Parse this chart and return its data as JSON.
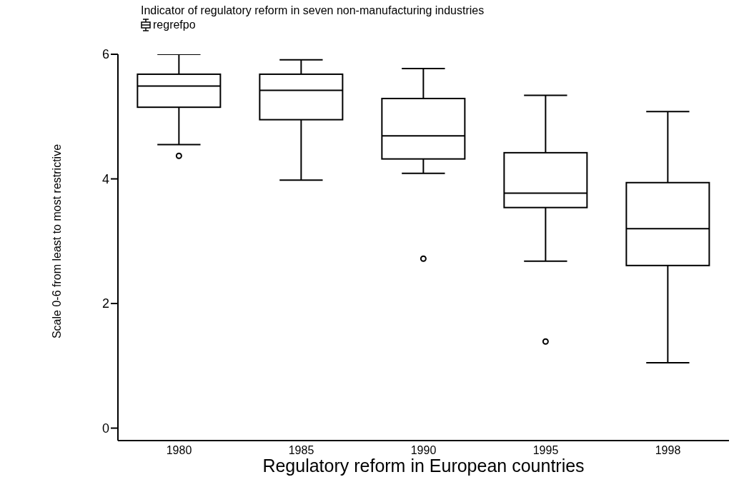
{
  "chart_data": {
    "type": "box",
    "title": "Indicator of regulatory reform in seven non-manufacturing industries",
    "xlabel": "Regulatory reform in European countries",
    "ylabel": "Scale 0-6 from least to most restrictive",
    "categories": [
      "1980",
      "1985",
      "1990",
      "1995",
      "1998"
    ],
    "series": [
      {
        "name": "regrefpo",
        "color": "#000000",
        "boxes": [
          {
            "low": 4.55,
            "q1": 5.15,
            "median": 5.49,
            "q3": 5.68,
            "high": 6.0,
            "outliers": [
              4.37
            ]
          },
          {
            "low": 3.98,
            "q1": 4.95,
            "median": 5.42,
            "q3": 5.68,
            "high": 5.91
          },
          {
            "low": 4.09,
            "q1": 4.32,
            "median": 4.69,
            "q3": 5.29,
            "high": 5.77,
            "outliers": [
              2.72
            ]
          },
          {
            "low": 2.68,
            "q1": 3.54,
            "median": 3.77,
            "q3": 4.42,
            "high": 5.34,
            "outliers": [
              1.39
            ]
          },
          {
            "low": 1.05,
            "q1": 2.61,
            "median": 3.2,
            "q3": 3.94,
            "high": 5.08
          }
        ]
      }
    ],
    "ylim": [
      -0.2,
      6
    ],
    "yticks": [
      0,
      2,
      4,
      6
    ],
    "grid": false,
    "legend": "top left"
  }
}
